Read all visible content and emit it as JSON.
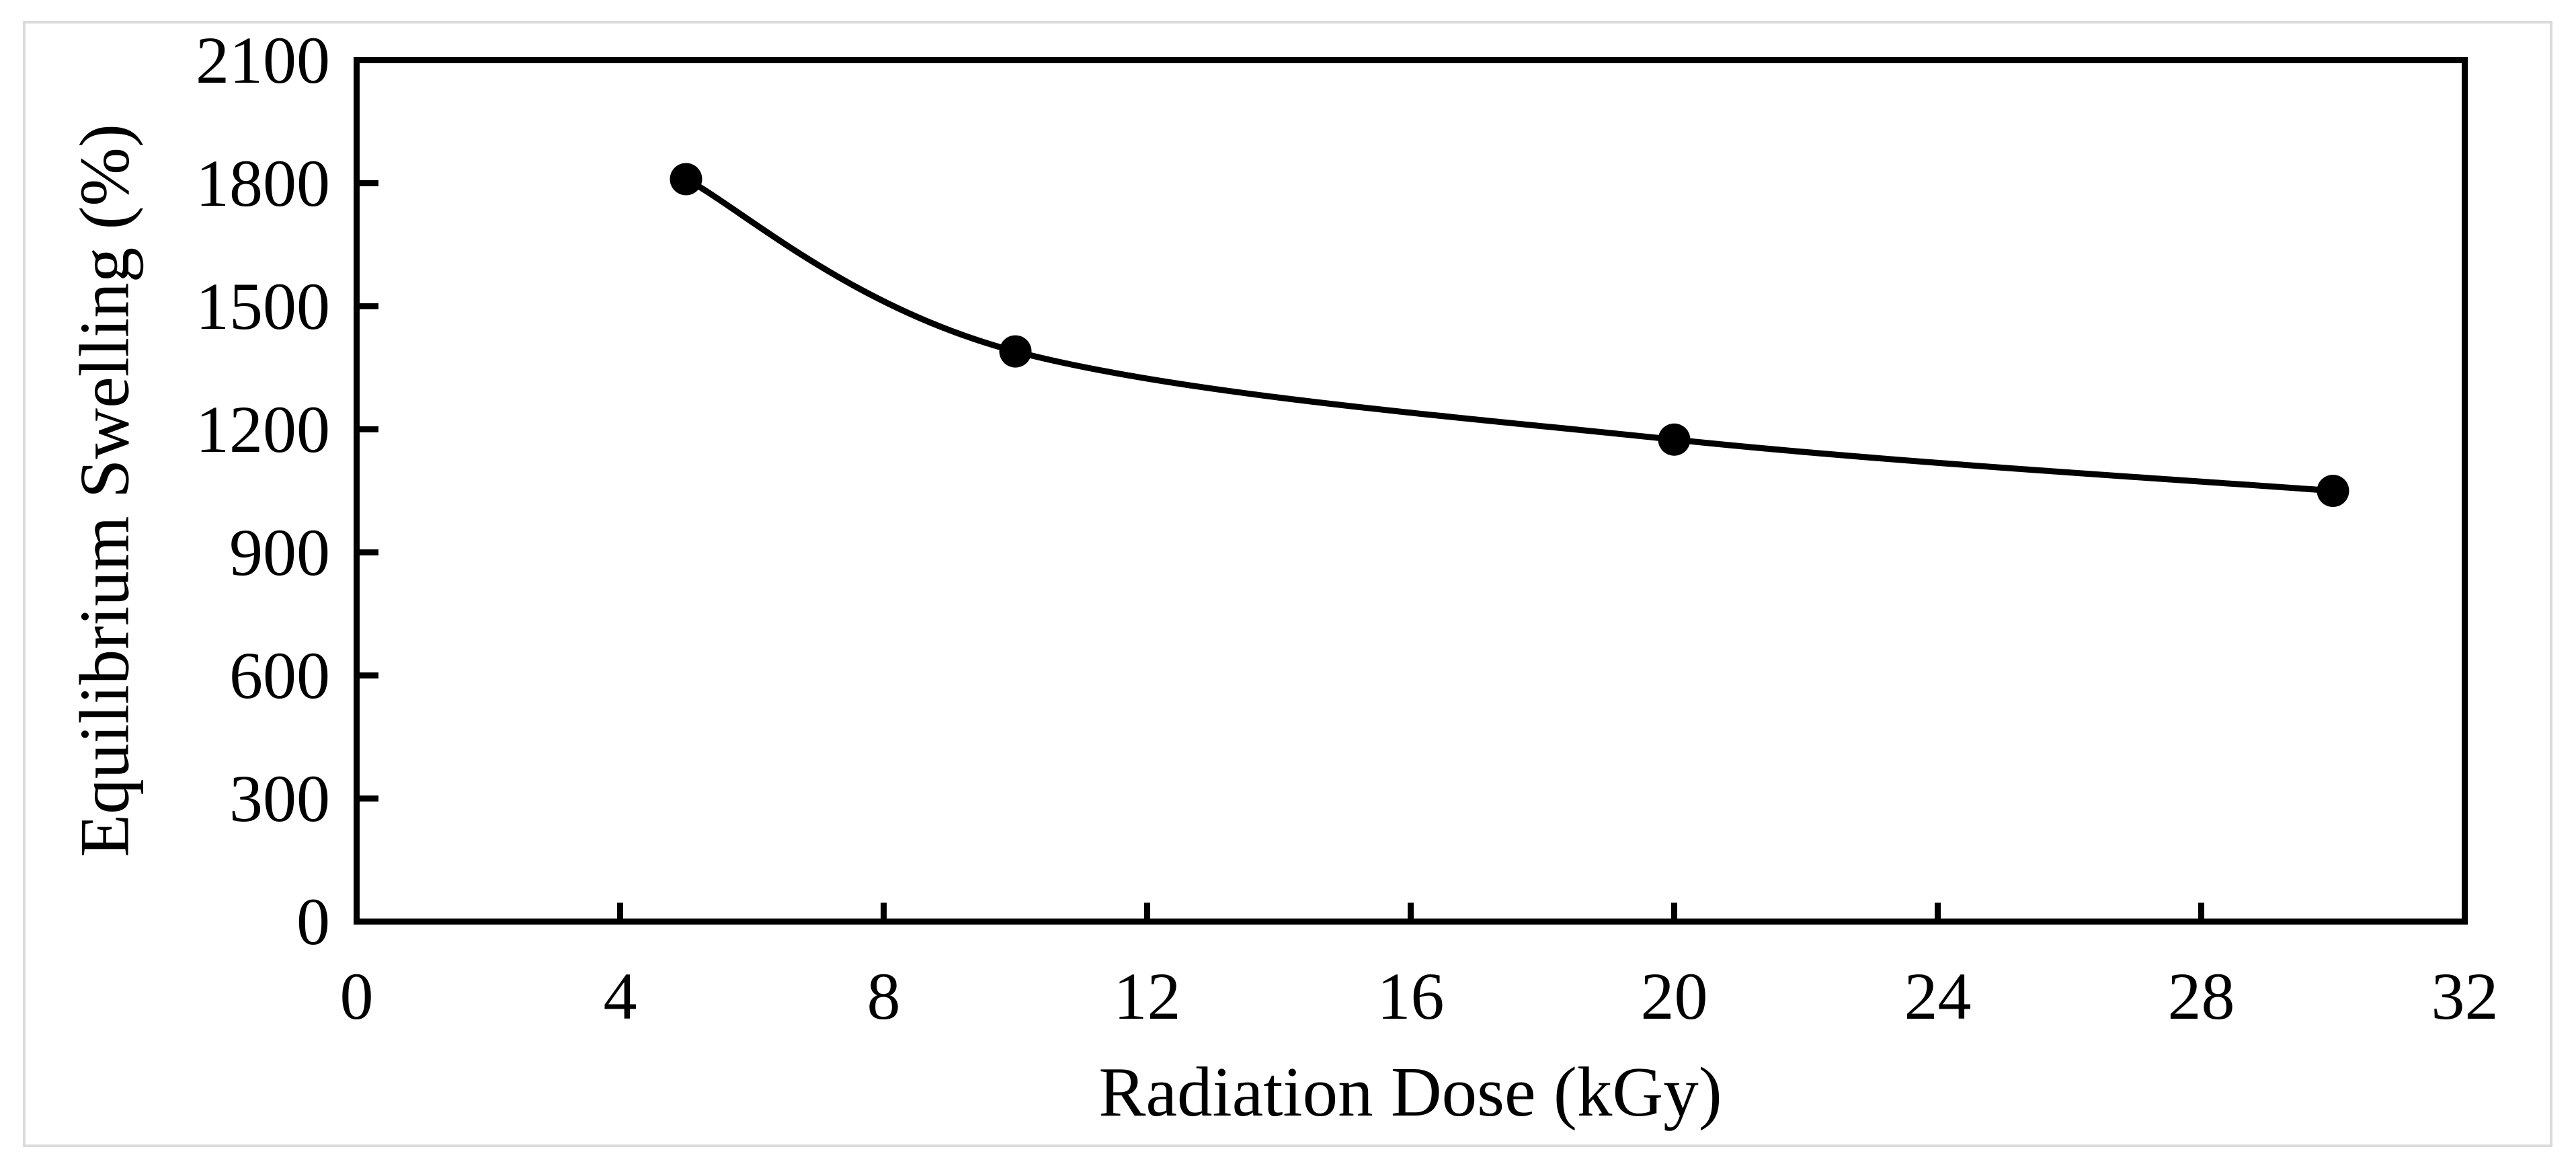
{
  "canvas": {
    "background": "#ffffff",
    "border_color": "#dbdbdb"
  },
  "chart_data": {
    "type": "line",
    "title": "",
    "xlabel": "Radiation Dose (kGy)",
    "ylabel": "Equilibrium Swelling (%)",
    "x": [
      5,
      10,
      20,
      30
    ],
    "y": [
      1810,
      1390,
      1175,
      1050
    ],
    "series": [
      {
        "name": "Equilibrium swelling",
        "x": [
          5,
          10,
          20,
          30
        ],
        "values": [
          1810,
          1390,
          1175,
          1050
        ]
      }
    ],
    "xlim": [
      0,
      32
    ],
    "ylim": [
      0,
      2100
    ],
    "x_ticks": [
      0,
      4,
      8,
      12,
      16,
      20,
      24,
      28,
      32
    ],
    "y_ticks": [
      0,
      300,
      600,
      900,
      1200,
      1500,
      1800,
      2100
    ],
    "grid": false,
    "legend": "none",
    "smooth": true,
    "marker": "filled-circle",
    "line_color": "#000000",
    "marker_color": "#000000",
    "axis_color": "#000000"
  }
}
